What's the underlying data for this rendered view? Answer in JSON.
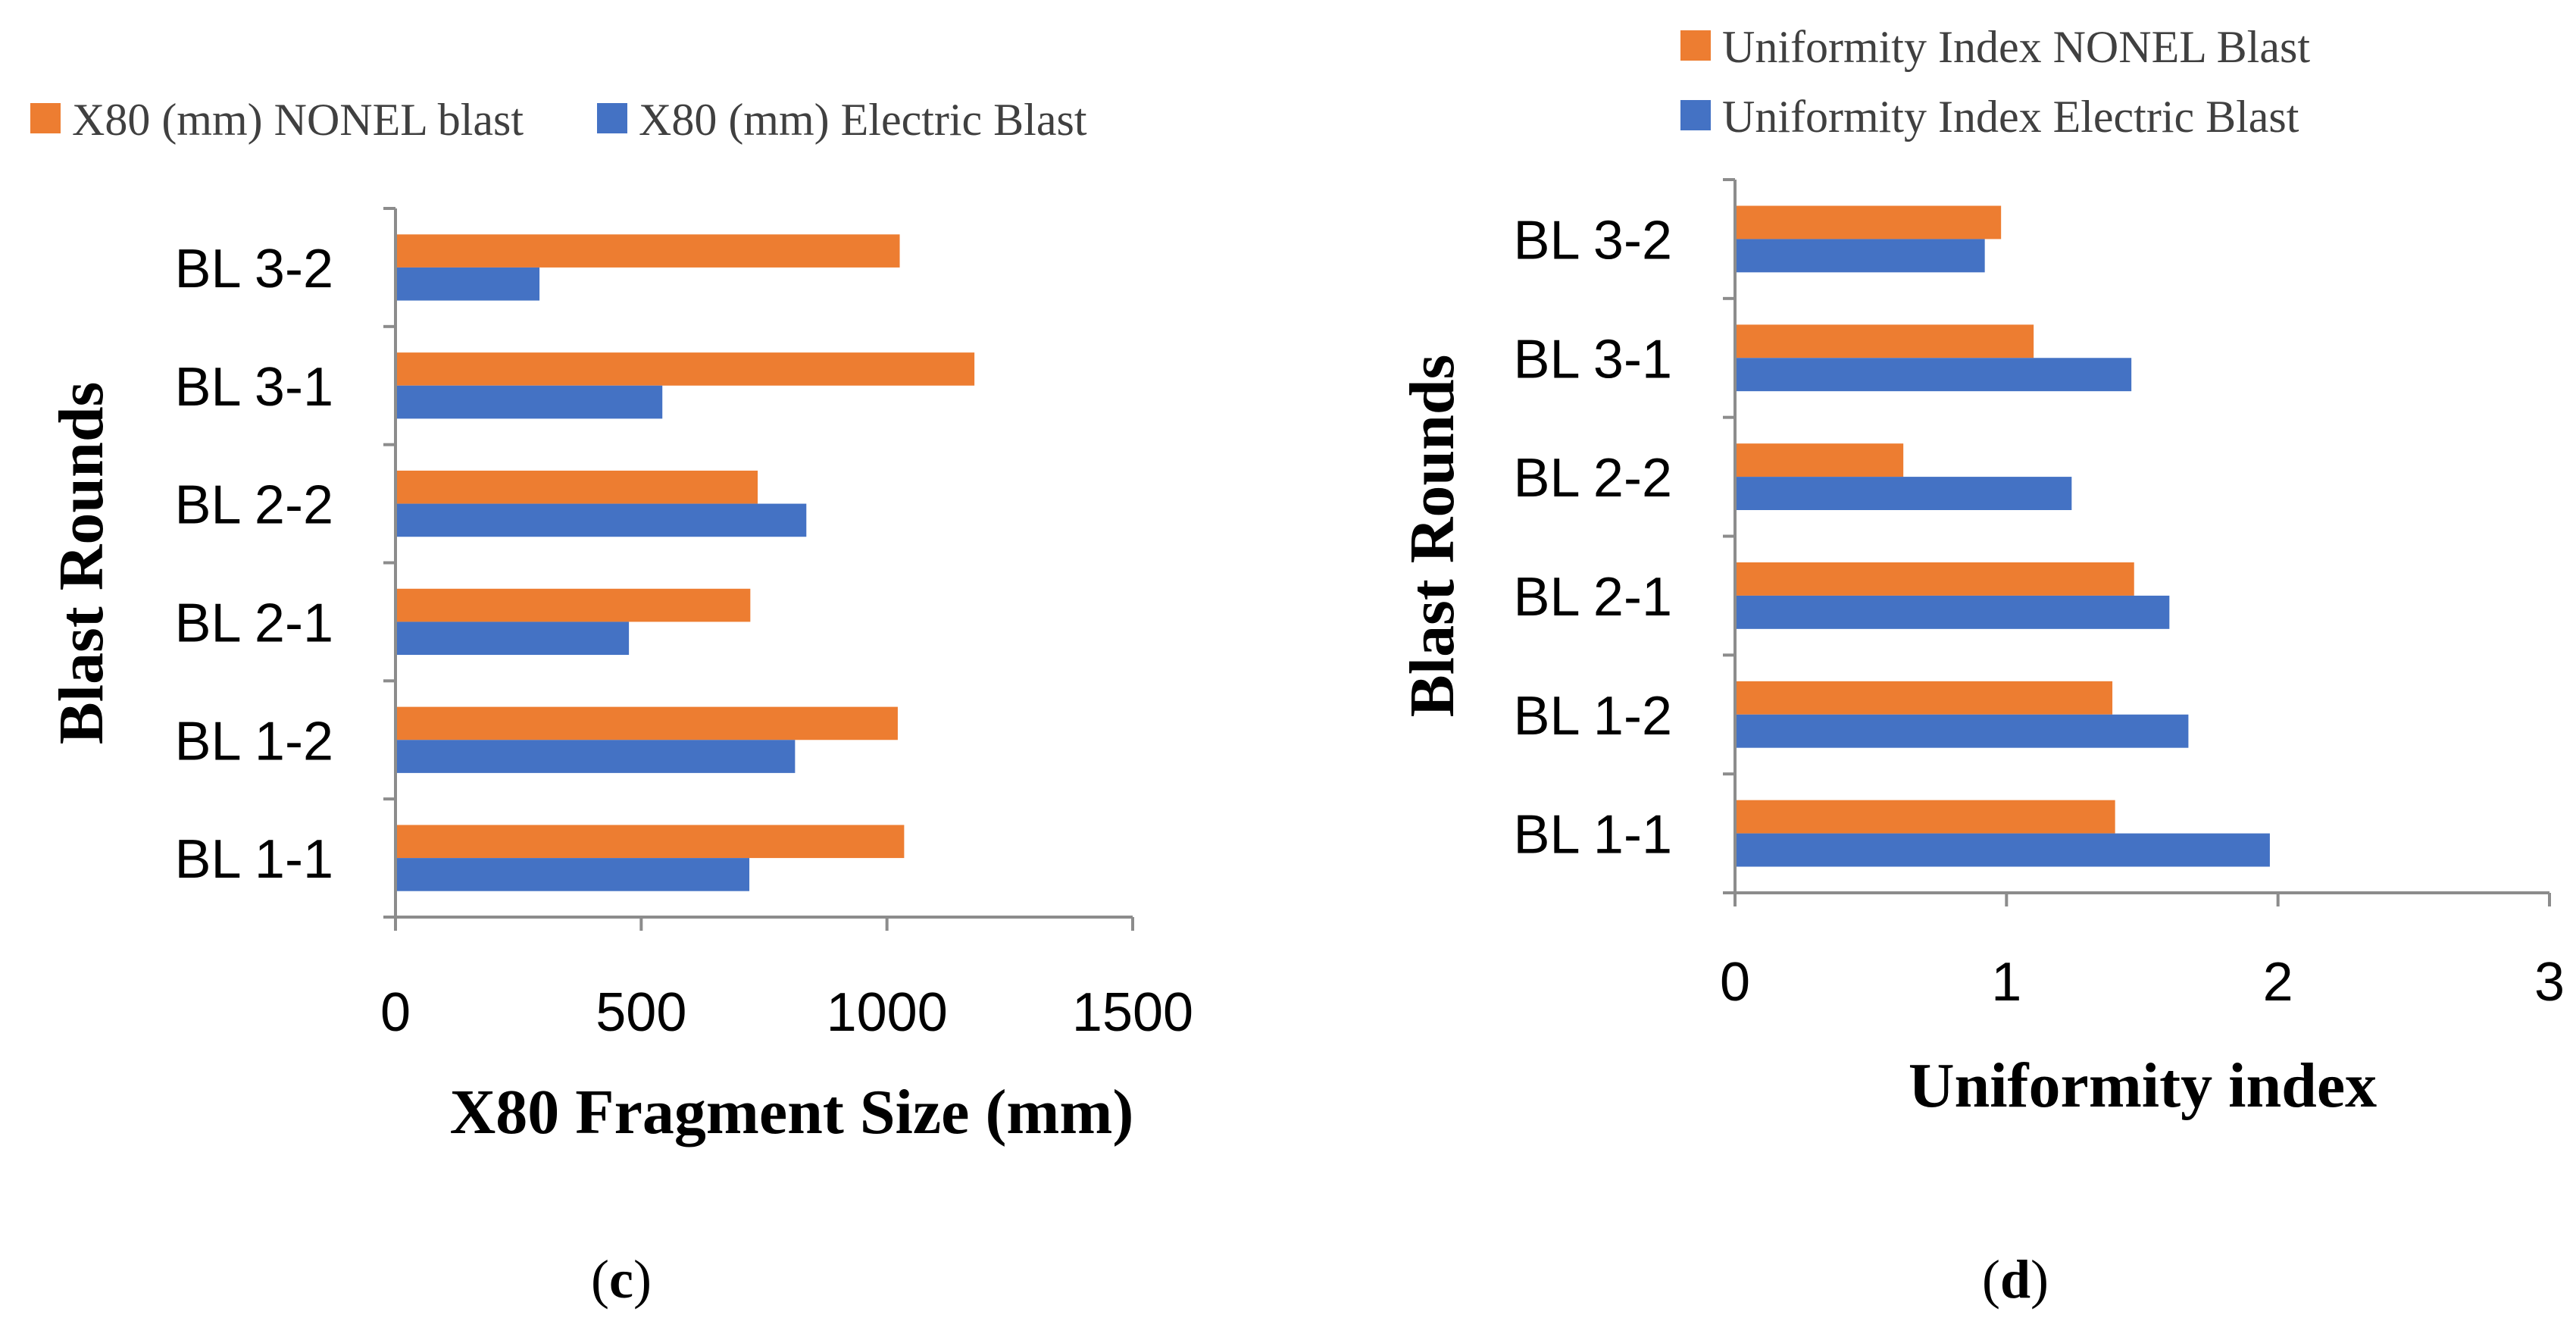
{
  "colors": {
    "nonel": "#ED7D31",
    "electric": "#4472C4",
    "axis": "#8C8C8C"
  },
  "chart_data": [
    {
      "id": "c",
      "type": "bar",
      "orientation": "horizontal",
      "title": "",
      "caption_open": "(",
      "caption_letter": "c",
      "caption_close": ")",
      "xlabel": "X80 Fragment Size (mm)",
      "ylabel": "Blast Rounds",
      "xlim": [
        0,
        1500
      ],
      "xticks": [
        0,
        500,
        1000,
        1500
      ],
      "xtick_labels": [
        "0",
        "500",
        "1000",
        "1500"
      ],
      "categories": [
        "BL 1-1",
        "BL 1-2",
        "BL 2-1",
        "BL 2-2",
        "BL 3-1",
        "BL 3-2"
      ],
      "series": [
        {
          "name": "X80 (mm) NONEL blast",
          "color": "#ED7D31",
          "values": [
            1035,
            1022,
            722,
            737,
            1178,
            1026
          ]
        },
        {
          "name": "X80 (mm) Electric Blast",
          "color": "#4472C4",
          "values": [
            720,
            813,
            475,
            836,
            543,
            293
          ]
        }
      ],
      "legend_position": "top",
      "grid": false
    },
    {
      "id": "d",
      "type": "bar",
      "orientation": "horizontal",
      "title": "",
      "caption_open": "(",
      "caption_letter": "d",
      "caption_close": ")",
      "xlabel": "Uniformity index",
      "ylabel": "Blast Rounds",
      "xlim": [
        0,
        3
      ],
      "xticks": [
        0,
        1,
        2,
        3
      ],
      "xtick_labels": [
        "0",
        "1",
        "2",
        "3"
      ],
      "categories": [
        "BL 1-1",
        "BL 1-2",
        "BL 2-1",
        "BL 2-2",
        "BL 3-1",
        "BL 3-2"
      ],
      "series": [
        {
          "name": "Uniformity Index NONEL Blast",
          "color": "#ED7D31",
          "values": [
            1.4,
            1.39,
            1.47,
            0.62,
            1.1,
            0.98
          ]
        },
        {
          "name": "Uniformity Index Electric Blast",
          "color": "#4472C4",
          "values": [
            1.97,
            1.67,
            1.6,
            1.24,
            1.46,
            0.92
          ]
        }
      ],
      "legend_position": "top",
      "grid": false
    }
  ]
}
